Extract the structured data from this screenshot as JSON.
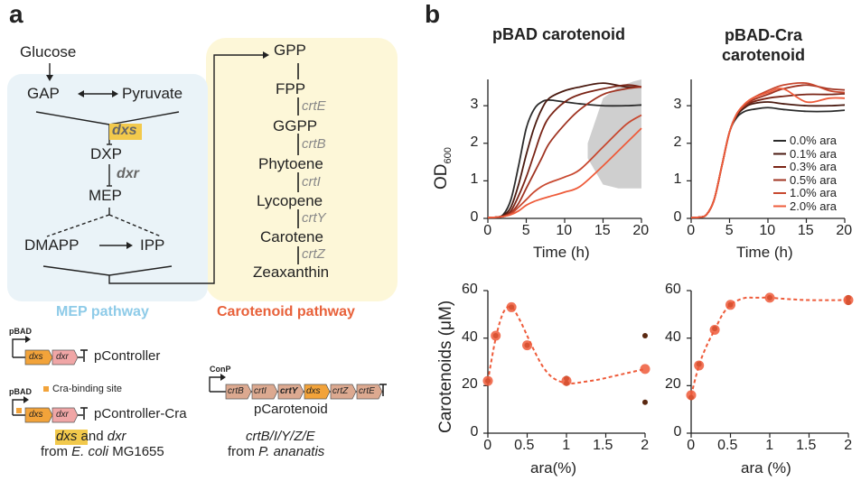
{
  "panel_a": {
    "label": "a",
    "mep": {
      "pathway_label": "MEP pathway",
      "glucose": "Glucose",
      "gap": "GAP",
      "pyruvate": "Pyruvate",
      "dxs": "dxs",
      "dxp": "DXP",
      "dxr": "dxr",
      "mep": "MEP",
      "dmapp": "DMAPP",
      "ipp": "IPP"
    },
    "carotenoid": {
      "pathway_label": "Carotenoid pathway",
      "metabolites": [
        "GPP",
        "FPP",
        "GGPP",
        "Phytoene",
        "Lycopene",
        "Carotene",
        "Zeaxanthin"
      ],
      "enzymes": [
        "crtE",
        "crtB",
        "crtI",
        "crtY",
        "crtZ"
      ]
    },
    "constructs": {
      "pbad1": "pBAD",
      "pcontroller": "pController",
      "pbad2": "pBAD",
      "cra_site": "Cra-binding site",
      "pcontroller_cra": "pController-Cra",
      "gene_dxs": "dxs",
      "gene_dxr": "dxr",
      "conp": "ConP",
      "crt_genes": [
        "crtB",
        "crtI",
        "crtY",
        "dxs",
        "crtZ",
        "crtE"
      ],
      "pcarotenoid": "pCarotenoid",
      "origin_left_genes": "dxs",
      "origin_left_and": " and ",
      "origin_left_gene2": "dxr",
      "origin_left_from": "from ",
      "origin_left_species": "E. coli",
      "origin_left_strain": " MG1655",
      "origin_right_genes": "crtB/I/Y/Z/E",
      "origin_right_from": "from ",
      "origin_right_species": "P. ananatis"
    },
    "colors": {
      "mep_bg": "#eaf3f8",
      "carot_bg": "#fdf7d8",
      "mep_label": "#8ecbe8",
      "carot_label": "#e8613a",
      "dxs_highlight": "#f2c94c",
      "gene_pink": "#f0a6a6",
      "gene_orange": "#f2a33a",
      "gene_tan": "#dca990"
    }
  },
  "panel_b": {
    "label": "b",
    "titles": [
      "pBAD carotenoid",
      "pBAD-Cra carotenoid"
    ],
    "legend": [
      "0.0% ara",
      "0.1% ara",
      "0.3% ara",
      "0.5% ara",
      "1.0% ara",
      "2.0% ara"
    ],
    "series_colors": [
      "#2b2b2b",
      "#4a1a10",
      "#7a2416",
      "#a03422",
      "#c8482f",
      "#ee5b3a"
    ],
    "growth_ylabel": "OD",
    "growth_ylabel_sub": "600",
    "growth_xlabel": "Time (h)",
    "caro_ylabel": "Carotenoids (μM)",
    "caro_xlabels": [
      "ara(%)",
      "ara (%)"
    ],
    "growth_xticks": [
      "0",
      "5",
      "10",
      "15",
      "20"
    ],
    "growth_yticks": [
      "0",
      "1",
      "2",
      "3"
    ],
    "caro_xticks": [
      "0",
      "0.5",
      "1",
      "1.5",
      "2"
    ],
    "caro_yticks": [
      "0",
      "20",
      "40",
      "60"
    ]
  },
  "chart_data": [
    {
      "type": "line",
      "title": "pBAD carotenoid",
      "xlabel": "Time (h)",
      "ylabel": "OD600",
      "xlim": [
        0,
        20
      ],
      "ylim": [
        0,
        3.7
      ],
      "shaded_band": {
        "x": [
          13,
          15,
          17,
          19,
          20
        ],
        "lower": [
          1.6,
          0.9,
          0.8,
          0.8,
          0.8
        ],
        "upper": [
          2.0,
          3.2,
          3.5,
          3.65,
          3.7
        ]
      },
      "series": [
        {
          "name": "0.0% ara",
          "x": [
            0,
            1,
            2,
            3,
            4,
            5,
            6,
            7,
            8,
            10,
            12,
            15,
            18,
            20
          ],
          "y": [
            0.02,
            0.03,
            0.1,
            0.5,
            1.4,
            2.4,
            2.9,
            3.1,
            3.15,
            3.1,
            3.05,
            3.0,
            3.0,
            3.02
          ]
        },
        {
          "name": "0.1% ara",
          "x": [
            0,
            1,
            2,
            3,
            4,
            5,
            6,
            7,
            8,
            10,
            12,
            15,
            18,
            20
          ],
          "y": [
            0.02,
            0.03,
            0.08,
            0.3,
            0.9,
            1.7,
            2.4,
            2.9,
            3.2,
            3.4,
            3.5,
            3.6,
            3.5,
            3.5
          ]
        },
        {
          "name": "0.3% ara",
          "x": [
            0,
            1,
            2,
            3,
            4,
            5,
            6,
            7,
            8,
            10,
            12,
            15,
            18,
            20
          ],
          "y": [
            0.02,
            0.03,
            0.06,
            0.2,
            0.6,
            1.1,
            1.7,
            2.3,
            2.7,
            3.1,
            3.3,
            3.45,
            3.55,
            3.5
          ]
        },
        {
          "name": "0.5% ara",
          "x": [
            0,
            1,
            2,
            3,
            4,
            5,
            6,
            7,
            8,
            10,
            12,
            15,
            18,
            20
          ],
          "y": [
            0.02,
            0.03,
            0.05,
            0.15,
            0.4,
            0.8,
            1.2,
            1.6,
            2.0,
            2.5,
            2.9,
            3.3,
            3.45,
            3.5
          ]
        },
        {
          "name": "1.0% ara",
          "x": [
            0,
            1,
            2,
            3,
            4,
            5,
            6,
            7,
            8,
            10,
            12,
            15,
            18,
            20
          ],
          "y": [
            0.02,
            0.03,
            0.05,
            0.12,
            0.3,
            0.5,
            0.7,
            0.85,
            0.95,
            1.1,
            1.3,
            1.9,
            2.5,
            2.75
          ]
        },
        {
          "name": "2.0% ara",
          "x": [
            0,
            1,
            2,
            3,
            4,
            5,
            6,
            7,
            8,
            10,
            12,
            15,
            18,
            20
          ],
          "y": [
            0.02,
            0.03,
            0.05,
            0.1,
            0.2,
            0.35,
            0.45,
            0.52,
            0.58,
            0.7,
            0.85,
            1.4,
            2.0,
            2.4
          ]
        }
      ]
    },
    {
      "type": "line",
      "title": "pBAD-Cra carotenoid",
      "xlabel": "Time (h)",
      "ylabel": "OD600",
      "xlim": [
        0,
        20
      ],
      "ylim": [
        0,
        3.7
      ],
      "series": [
        {
          "name": "0.0% ara",
          "x": [
            0,
            1,
            2,
            3,
            4,
            5,
            6,
            7,
            8,
            10,
            12,
            15,
            18,
            20
          ],
          "y": [
            0.02,
            0.03,
            0.1,
            0.5,
            1.4,
            2.3,
            2.7,
            2.85,
            2.9,
            2.95,
            2.9,
            2.85,
            2.85,
            2.88
          ]
        },
        {
          "name": "0.1% ara",
          "x": [
            0,
            1,
            2,
            3,
            4,
            5,
            6,
            7,
            8,
            10,
            12,
            15,
            18,
            20
          ],
          "y": [
            0.02,
            0.03,
            0.1,
            0.5,
            1.4,
            2.3,
            2.75,
            2.95,
            3.05,
            3.1,
            3.05,
            3.0,
            3.0,
            3.02
          ]
        },
        {
          "name": "0.3% ara",
          "x": [
            0,
            1,
            2,
            3,
            4,
            5,
            6,
            7,
            8,
            10,
            12,
            15,
            18,
            20
          ],
          "y": [
            0.02,
            0.03,
            0.1,
            0.5,
            1.4,
            2.3,
            2.8,
            3.0,
            3.1,
            3.2,
            3.25,
            3.3,
            3.3,
            3.32
          ]
        },
        {
          "name": "0.5% ara",
          "x": [
            0,
            1,
            2,
            3,
            4,
            5,
            6,
            7,
            8,
            10,
            12,
            15,
            18,
            20
          ],
          "y": [
            0.02,
            0.03,
            0.1,
            0.5,
            1.4,
            2.3,
            2.8,
            3.0,
            3.15,
            3.3,
            3.45,
            3.55,
            3.45,
            3.42
          ]
        },
        {
          "name": "1.0% ara",
          "x": [
            0,
            1,
            2,
            3,
            4,
            5,
            6,
            7,
            8,
            10,
            12,
            15,
            18,
            20
          ],
          "y": [
            0.02,
            0.03,
            0.1,
            0.5,
            1.4,
            2.3,
            2.8,
            3.05,
            3.2,
            3.4,
            3.55,
            3.6,
            3.4,
            3.35
          ]
        },
        {
          "name": "2.0% ara",
          "x": [
            0,
            1,
            2,
            3,
            4,
            5,
            6,
            7,
            8,
            10,
            12,
            15,
            18,
            20
          ],
          "y": [
            0.02,
            0.03,
            0.1,
            0.5,
            1.4,
            2.3,
            2.8,
            3.05,
            3.2,
            3.35,
            3.45,
            3.1,
            3.2,
            3.2
          ]
        }
      ]
    },
    {
      "type": "scatter",
      "xlabel": "ara(%)",
      "ylabel": "Carotenoids (μM)",
      "xlim": [
        0,
        2
      ],
      "ylim": [
        0,
        60
      ],
      "mean_x": [
        0,
        0.1,
        0.3,
        0.5,
        1,
        2
      ],
      "mean_y": [
        22,
        41,
        53,
        37,
        22,
        27
      ],
      "replicates": [
        [
          0,
          22
        ],
        [
          0.1,
          41
        ],
        [
          0.3,
          53
        ],
        [
          0.5,
          37
        ],
        [
          1,
          21
        ],
        [
          1,
          23
        ],
        [
          2,
          41
        ],
        [
          2,
          13
        ]
      ],
      "fit_x": [
        0,
        0.1,
        0.2,
        0.3,
        0.4,
        0.5,
        0.6,
        0.7,
        0.8,
        0.9,
        1.0,
        1.1,
        1.2,
        1.4,
        1.6,
        1.8,
        2.0
      ],
      "fit_y": [
        22,
        40,
        51,
        53,
        48,
        41,
        34,
        28,
        24,
        22,
        21,
        21,
        21.5,
        22.5,
        24,
        25.5,
        27
      ]
    },
    {
      "type": "scatter",
      "xlabel": "ara (%)",
      "ylabel": "Carotenoids (μM)",
      "xlim": [
        0,
        2
      ],
      "ylim": [
        0,
        60
      ],
      "mean_x": [
        0,
        0.1,
        0.3,
        0.5,
        1,
        2
      ],
      "mean_y": [
        16,
        28.5,
        43.5,
        54,
        57,
        56
      ],
      "replicates": [
        [
          0,
          15
        ],
        [
          0.1,
          29
        ],
        [
          0.3,
          44
        ],
        [
          0.5,
          54
        ],
        [
          1,
          57
        ],
        [
          2,
          55
        ],
        [
          2,
          57
        ]
      ],
      "fit_x": [
        0,
        0.1,
        0.2,
        0.3,
        0.4,
        0.5,
        0.6,
        0.7,
        0.8,
        1.0,
        1.2,
        1.5,
        2.0
      ],
      "fit_y": [
        16,
        28.5,
        37,
        43.5,
        50,
        54,
        56,
        57,
        57,
        57,
        56.5,
        56,
        56
      ]
    }
  ]
}
